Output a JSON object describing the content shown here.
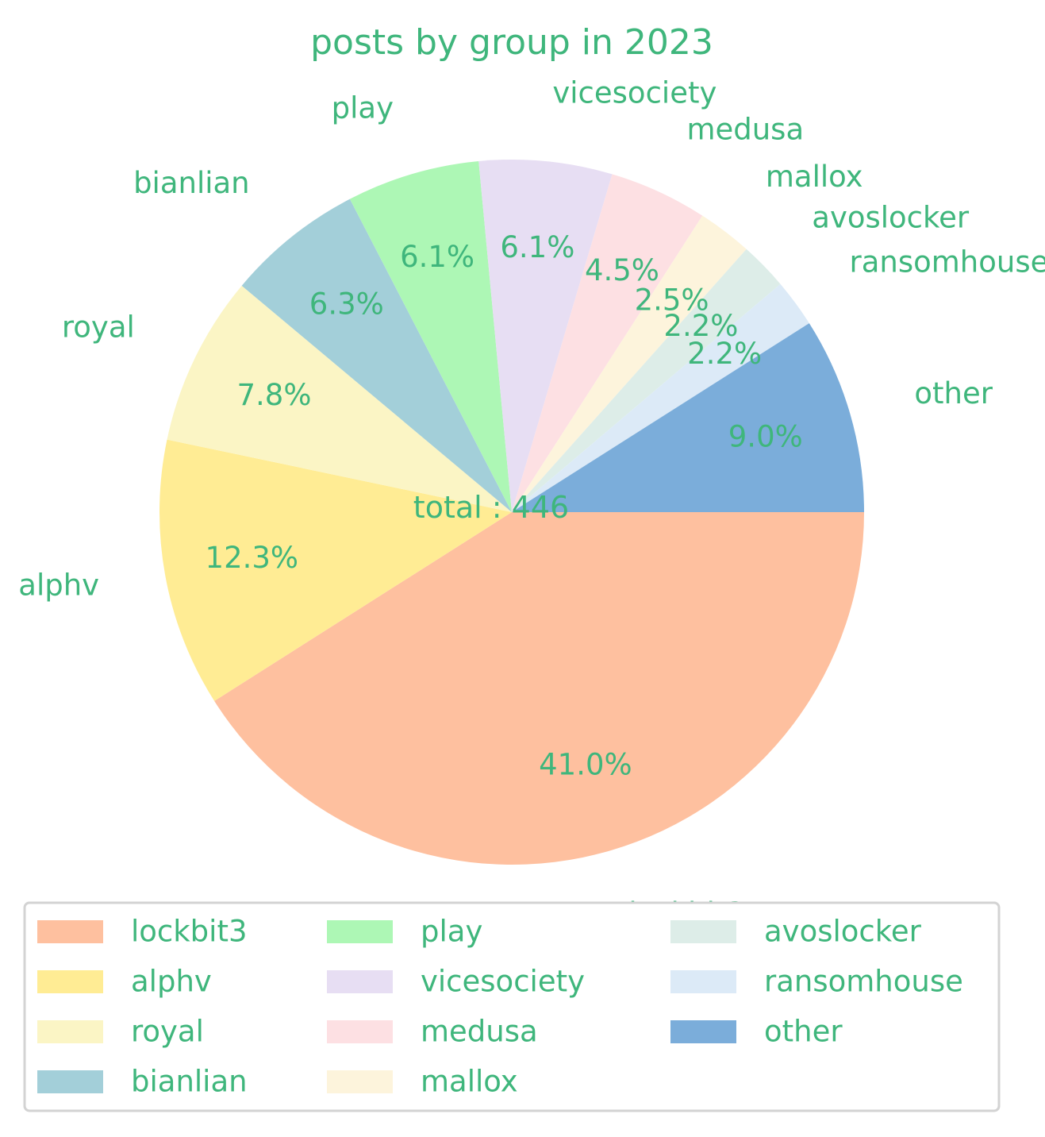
{
  "chart_data": {
    "type": "pie",
    "title": "posts by group in 2023",
    "center_label": "total : 446",
    "text_color": "#3fb67c",
    "start_angle_deg": 0,
    "direction": "clockwise",
    "slices": [
      {
        "label": "lockbit3",
        "value": 41.0,
        "pct_label": "41.0%",
        "color": "#fec09f"
      },
      {
        "label": "alphv",
        "value": 12.3,
        "pct_label": "12.3%",
        "color": "#ffec94"
      },
      {
        "label": "royal",
        "value": 7.8,
        "pct_label": "7.8%",
        "color": "#fbf5c5"
      },
      {
        "label": "bianlian",
        "value": 6.3,
        "pct_label": "6.3%",
        "color": "#a3cfd9"
      },
      {
        "label": "play",
        "value": 6.1,
        "pct_label": "6.1%",
        "color": "#adf7b5"
      },
      {
        "label": "vicesociety",
        "value": 6.1,
        "pct_label": "6.1%",
        "color": "#e7def3"
      },
      {
        "label": "medusa",
        "value": 4.5,
        "pct_label": "4.5%",
        "color": "#fde0e3"
      },
      {
        "label": "mallox",
        "value": 2.5,
        "pct_label": "2.5%",
        "color": "#fdf4dc"
      },
      {
        "label": "avoslocker",
        "value": 2.2,
        "pct_label": "2.2%",
        "color": "#ddede8"
      },
      {
        "label": "ransomhouse",
        "value": 2.2,
        "pct_label": "2.2%",
        "color": "#dceaf7"
      },
      {
        "label": "other",
        "value": 9.0,
        "pct_label": "9.0%",
        "color": "#7badda"
      }
    ],
    "legend": {
      "placement": "bottom",
      "columns": 3
    }
  }
}
